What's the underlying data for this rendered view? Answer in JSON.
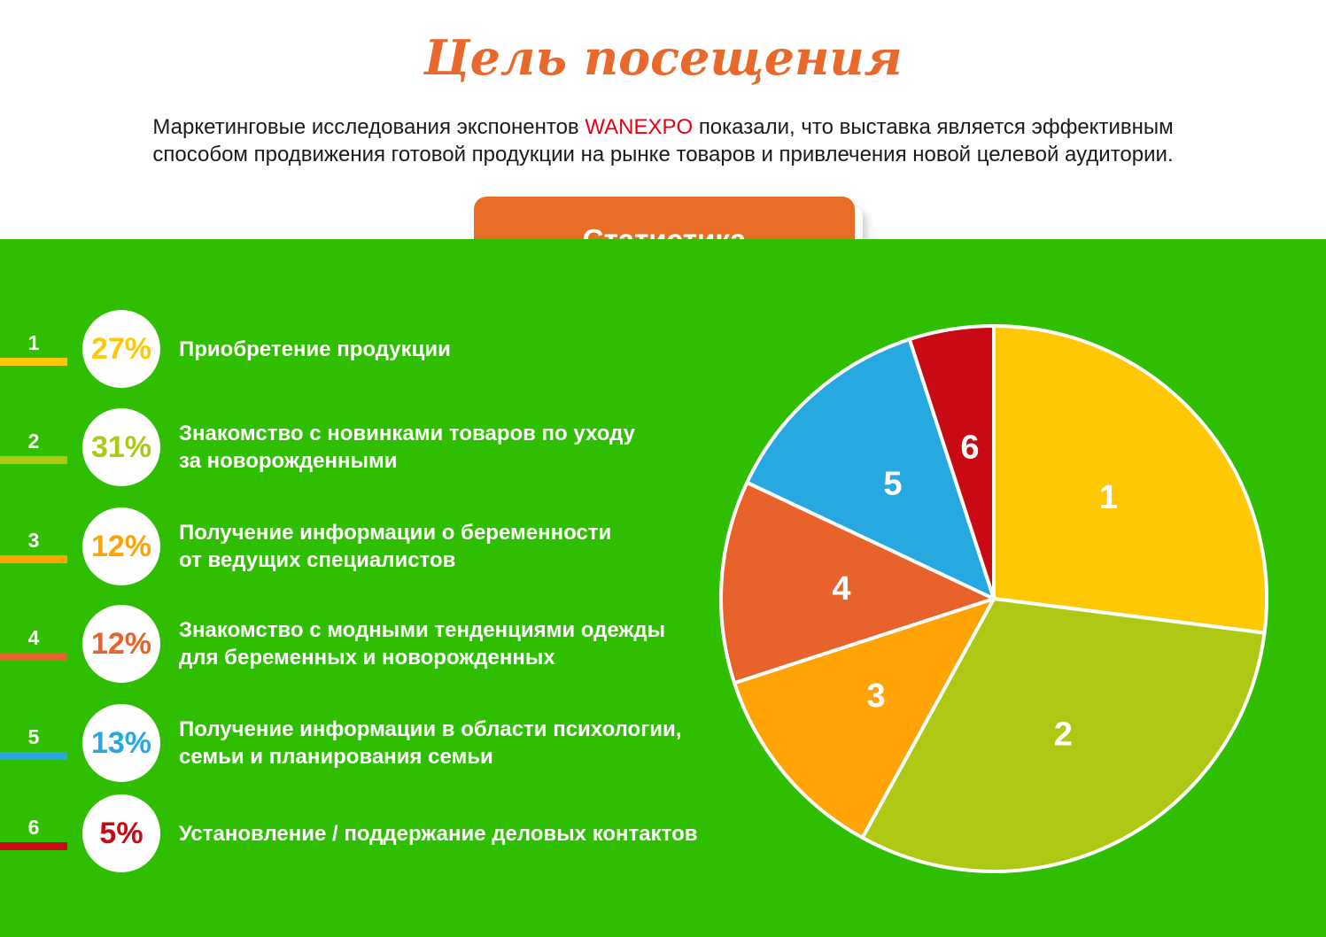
{
  "header": {
    "title": "Цель посещения",
    "intro_line1_pre": "Маркетинговые исследования экспонентов",
    "intro_brand": "WANEXPO",
    "intro_line1_post": "показали, что выставка является эффективным",
    "intro_line2": "способом продвижения готовой продукции на рынке товаров и привлечения новой целевой аудитории."
  },
  "stats_button": {
    "label": "Статистика"
  },
  "colors": {
    "background_green": "#30BE01",
    "button_orange": "#E86E28",
    "title_orange": "#E9692C",
    "brand_red": "#E60012",
    "pie_stroke_white": "#FFFFFF"
  },
  "legend": [
    {
      "num": "1",
      "percent": "27%",
      "label": "Приобретение продукции",
      "color": "#FFC805"
    },
    {
      "num": "2",
      "percent": "31%",
      "label": "Знакомство с новинками товаров по уходу\nза новорожденными",
      "color": "#AFC813"
    },
    {
      "num": "3",
      "percent": "12%",
      "label": "Получение информации о беременности\nот ведущих специалистов",
      "color": "#FFA404"
    },
    {
      "num": "4",
      "percent": "12%",
      "label": "Знакомство с модными тенденциями одежды\nдля беременных и новорожденных",
      "color": "#E8622C"
    },
    {
      "num": "5",
      "percent": "13%",
      "label": "Получение информации в области психологии,\nсемьи и планирования семьи",
      "color": "#28A8E0"
    },
    {
      "num": "6",
      "percent": "5%",
      "label": "Установление / поддержание деловых контактов",
      "color": "#C80A14"
    }
  ],
  "chart_data": {
    "type": "pie",
    "slice_labels": [
      "1",
      "2",
      "3",
      "4",
      "5",
      "6"
    ],
    "categories": [
      "Приобретение продукции",
      "Знакомство с новинками товаров по уходу за новорожденными",
      "Получение информации о беременности от ведущих специалистов",
      "Знакомство с модными тенденциями одежды для беременных и новорожденных",
      "Получение информации в области психологии, семьи и планирования семьи",
      "Установление / поддержание деловых контактов"
    ],
    "values": [
      27,
      31,
      12,
      12,
      13,
      5
    ],
    "unit": "%",
    "colors": [
      "#FFC805",
      "#AFC813",
      "#FFA404",
      "#E8622C",
      "#28A8E0",
      "#C80A14"
    ],
    "start_angle_deg": 0,
    "direction": "clockwise",
    "stroke": "#FFFFFF",
    "legend_position": "left"
  }
}
